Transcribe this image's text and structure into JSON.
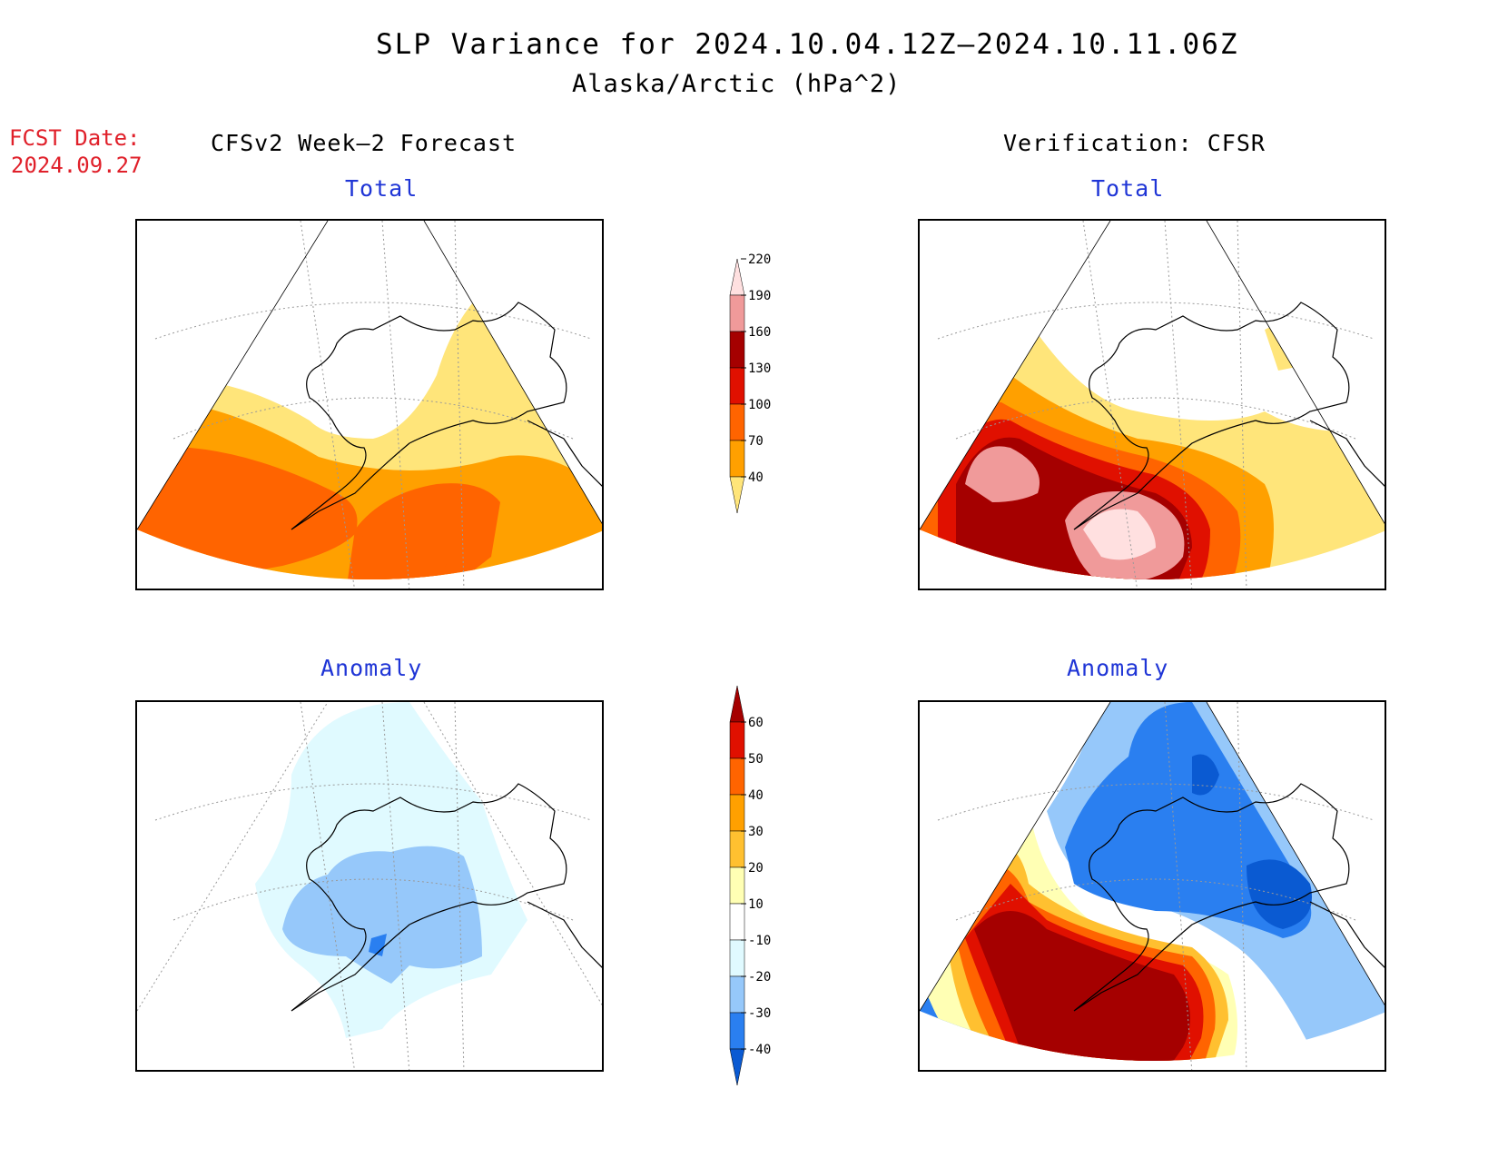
{
  "header": {
    "title": "SLP Variance for 2024.10.04.12Z–2024.10.11.06Z",
    "subtitle": "Alaska/Arctic (hPa^2)"
  },
  "fcst": {
    "line1": "FCST Date:",
    "line2": "2024.09.27"
  },
  "columns": {
    "left": "CFSv2 Week–2 Forecast",
    "right": "Verification: CFSR"
  },
  "panels": [
    {
      "id": "fcst-total",
      "label": "Total"
    },
    {
      "id": "verif-total",
      "label": "Total"
    },
    {
      "id": "fcst-anomaly",
      "label": "Anomaly"
    },
    {
      "id": "verif-anomaly",
      "label": "Anomaly"
    }
  ],
  "colorbars": {
    "total": {
      "ticks": [
        "40",
        "70",
        "100",
        "130",
        "160",
        "190",
        "220"
      ],
      "colors": [
        "#ffe57a",
        "#ffa000",
        "#ff6400",
        "#e01000",
        "#a50000",
        "#f09a9a",
        "#ffe0e0"
      ]
    },
    "anomaly": {
      "ticks": [
        "-40",
        "-30",
        "-20",
        "-10",
        "10",
        "20",
        "30",
        "40",
        "50",
        "60"
      ],
      "colors": [
        "#0a5ad2",
        "#2a7ff0",
        "#96c8fa",
        "#e0faff",
        "#ffffff",
        "#ffffb4",
        "#ffc030",
        "#ffa000",
        "#ff6400",
        "#e01000",
        "#a50000"
      ]
    }
  }
}
